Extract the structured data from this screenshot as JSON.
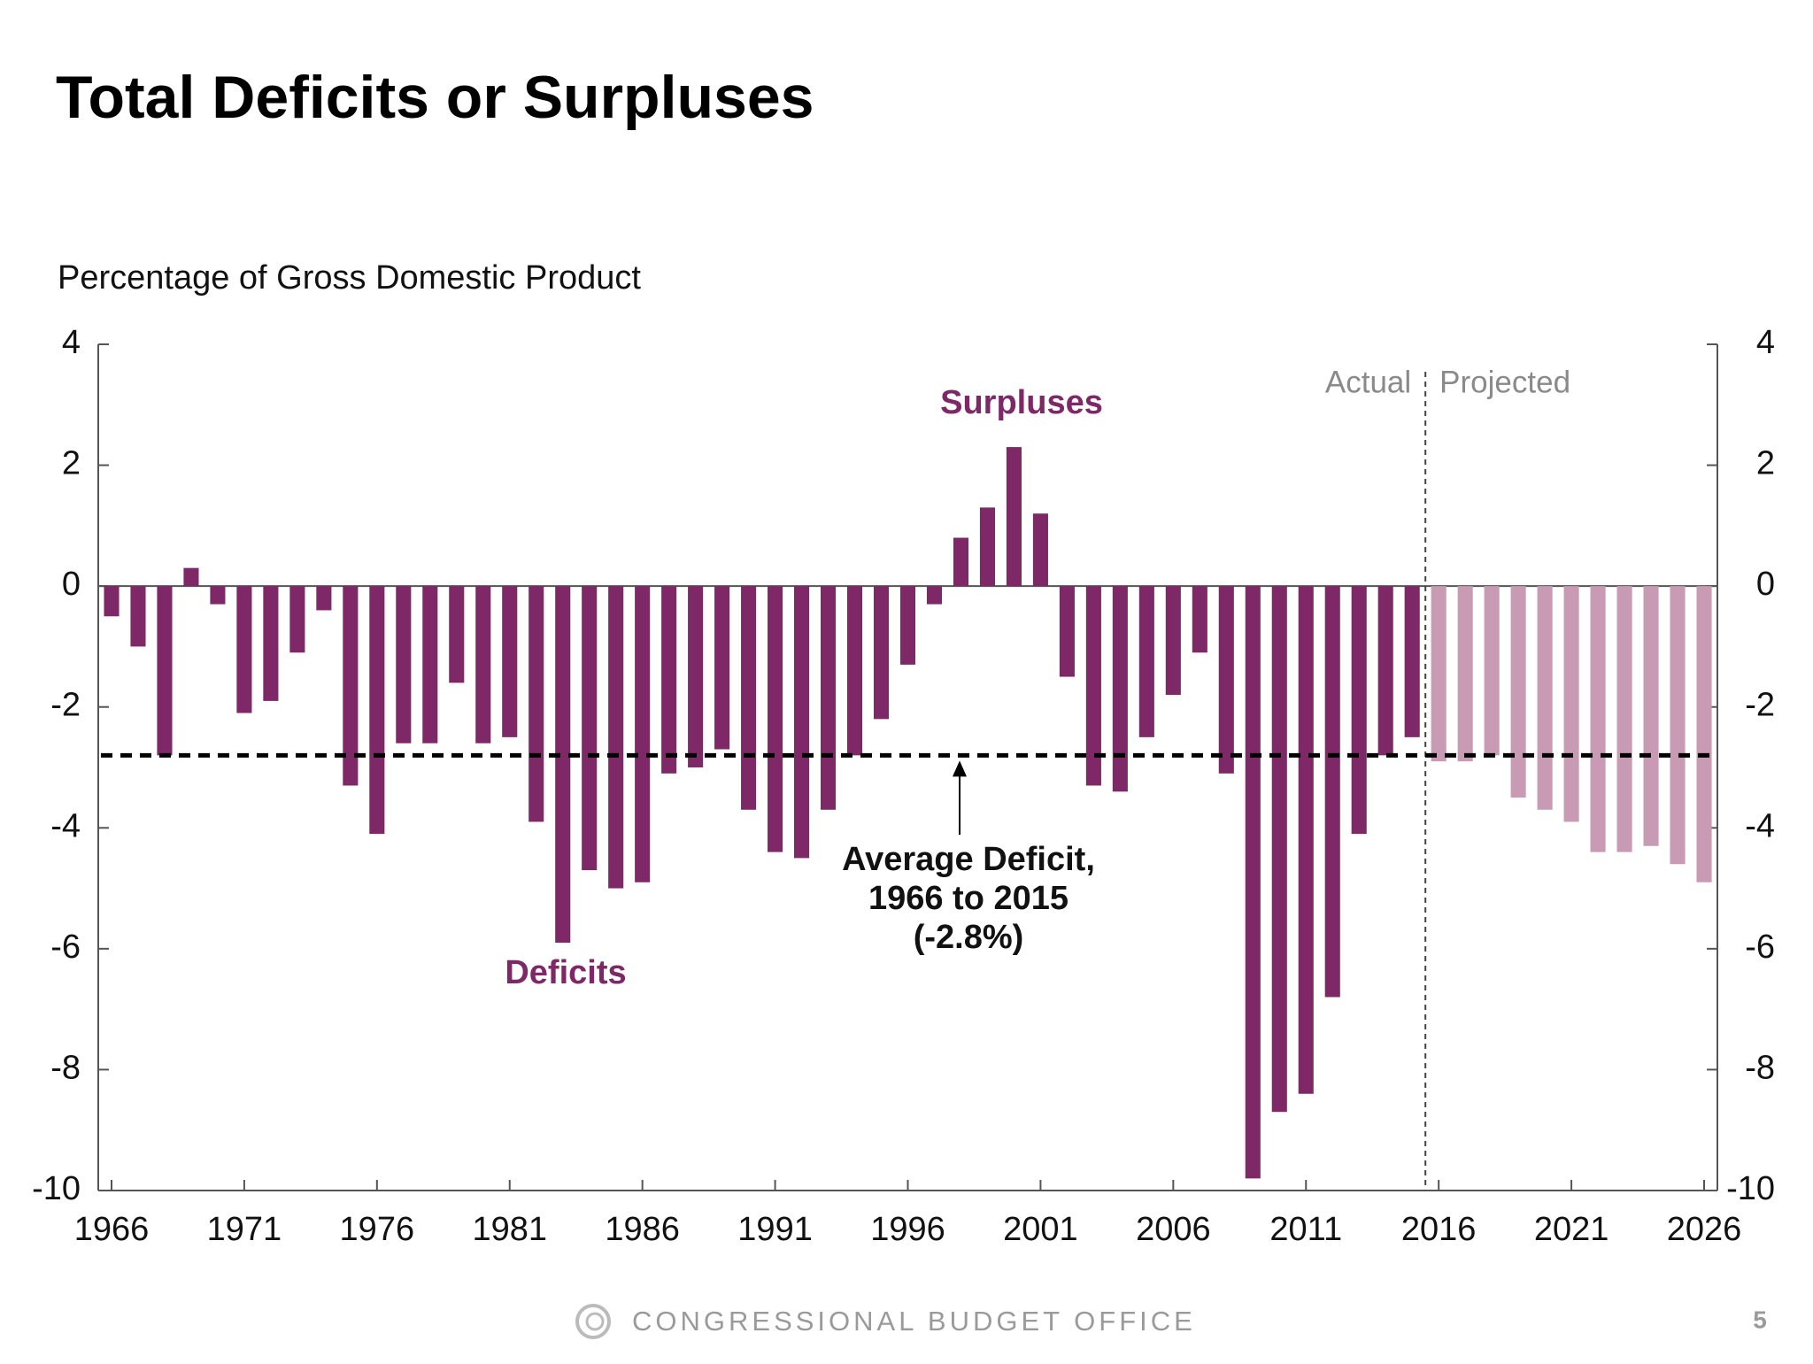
{
  "page_title": "Total Deficits or Surpluses",
  "footer": {
    "organization": "CONGRESSIONAL BUDGET OFFICE",
    "page_number": "5"
  },
  "chart_data": {
    "type": "bar",
    "y_axis_label": "Percentage of Gross Domestic Product",
    "x": [
      1966,
      1967,
      1968,
      1969,
      1970,
      1971,
      1972,
      1973,
      1974,
      1975,
      1976,
      1977,
      1978,
      1979,
      1980,
      1981,
      1982,
      1983,
      1984,
      1985,
      1986,
      1987,
      1988,
      1989,
      1990,
      1991,
      1992,
      1993,
      1994,
      1995,
      1996,
      1997,
      1998,
      1999,
      2000,
      2001,
      2002,
      2003,
      2004,
      2005,
      2006,
      2007,
      2008,
      2009,
      2010,
      2011,
      2012,
      2013,
      2014,
      2015,
      2016,
      2017,
      2018,
      2019,
      2020,
      2021,
      2022,
      2023,
      2024,
      2025,
      2026
    ],
    "series": [
      {
        "name": "Actual",
        "color": "#7f2868",
        "values": [
          -0.5,
          -1.0,
          -2.8,
          0.3,
          -0.3,
          -2.1,
          -1.9,
          -1.1,
          -0.4,
          -3.3,
          -4.1,
          -2.6,
          -2.6,
          -1.6,
          -2.6,
          -2.5,
          -3.9,
          -5.9,
          -4.7,
          -5.0,
          -4.9,
          -3.1,
          -3.0,
          -2.7,
          -3.7,
          -4.4,
          -4.5,
          -3.7,
          -2.8,
          -2.2,
          -1.3,
          -0.3,
          0.8,
          1.3,
          2.3,
          1.2,
          -1.5,
          -3.3,
          -3.4,
          -2.5,
          -1.8,
          -1.1,
          -3.1,
          -9.8,
          -8.7,
          -8.4,
          -6.8,
          -4.1,
          -2.8,
          -2.5,
          null,
          null,
          null,
          null,
          null,
          null,
          null,
          null,
          null,
          null,
          null
        ]
      },
      {
        "name": "Projected",
        "color": "#c99ab4",
        "values": [
          null,
          null,
          null,
          null,
          null,
          null,
          null,
          null,
          null,
          null,
          null,
          null,
          null,
          null,
          null,
          null,
          null,
          null,
          null,
          null,
          null,
          null,
          null,
          null,
          null,
          null,
          null,
          null,
          null,
          null,
          null,
          null,
          null,
          null,
          null,
          null,
          null,
          null,
          null,
          null,
          null,
          null,
          null,
          null,
          null,
          null,
          null,
          null,
          null,
          null,
          -2.9,
          -2.9,
          -2.8,
          -3.5,
          -3.7,
          -3.9,
          -4.4,
          -4.4,
          -4.3,
          -4.6,
          -4.9
        ]
      }
    ],
    "xlim": [
      1965.5,
      2026.5
    ],
    "xticks": [
      1966,
      1971,
      1976,
      1981,
      1986,
      1991,
      1996,
      2001,
      2006,
      2011,
      2016,
      2021,
      2026
    ],
    "ylim": [
      -10,
      4
    ],
    "yticks": [
      -10,
      -8,
      -6,
      -4,
      -2,
      0,
      2,
      4
    ],
    "average": -2.8,
    "annotations": {
      "surpluses": "Surpluses",
      "deficits": "Deficits",
      "average_label": [
        "Average Deficit,",
        "1966 to 2015",
        "(-2.8%)"
      ]
    }
  }
}
